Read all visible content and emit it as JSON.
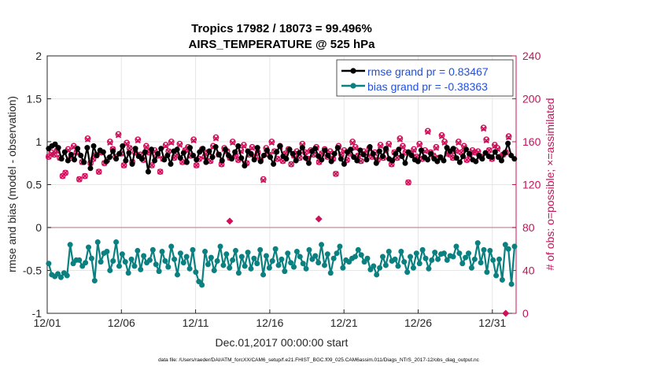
{
  "chart_data": {
    "type": "line",
    "title": "Tropics 17982 / 18073 = 99.496%",
    "subtitle": "AIRS_TEMPERATURE @ 525 hPa",
    "xlabel": "Dec.01,2017 00:00:00 start",
    "ylabel": "rmse and bias (model - observation)",
    "y2label": "# of obs: o=possible; ×=assimilated",
    "footer": "data file: /Users/raeder/DAI/ATM_forcXX/CAM6_setup/f.e21.FHIST_BGC.f09_025.CAM6assim.011/Diags_NTrS_2017-12/obs_diag_output.nc",
    "xlim": [
      0,
      31.6
    ],
    "ylim": [
      -1,
      2
    ],
    "y2lim": [
      0,
      240
    ],
    "x_ticks": [
      0,
      5,
      10,
      15,
      20,
      25,
      30
    ],
    "x_tick_labels": [
      "12/01",
      "12/06",
      "12/11",
      "12/16",
      "12/21",
      "12/26",
      "12/31"
    ],
    "y_ticks": [
      -1,
      -0.5,
      0,
      0.5,
      1,
      1.5,
      2
    ],
    "y_tick_labels": [
      "-1",
      "-0.5",
      "0",
      "0.5",
      "1",
      "1.5",
      "2"
    ],
    "y2_ticks": [
      0,
      40,
      80,
      120,
      160,
      200,
      240
    ],
    "y2_tick_labels": [
      "0",
      "40",
      "80",
      "120",
      "160",
      "200",
      "240"
    ],
    "legend_position": "top-right",
    "colors": {
      "rmse": "#000000",
      "bias": "#0a8080",
      "obs": "#d0105a",
      "axis_right": "#c8105a",
      "legend_text": "#1f4fe0"
    },
    "series": [
      {
        "name": "rmse grand pr = 0.83467",
        "values": [
          0.92,
          0.95,
          0.97,
          0.93,
          0.8,
          0.88,
          0.78,
          0.85,
          0.79,
          0.92,
          0.84,
          0.76,
          0.93,
          0.69,
          0.95,
          0.84,
          0.9,
          0.88,
          0.77,
          0.82,
          0.89,
          0.8,
          0.86,
          0.95,
          0.78,
          0.87,
          0.74,
          0.92,
          0.83,
          0.8,
          0.88,
          0.65,
          0.91,
          0.78,
          0.86,
          0.92,
          0.79,
          0.84,
          0.74,
          0.89,
          0.91,
          0.81,
          0.87,
          0.76,
          0.93,
          0.84,
          0.79,
          0.88,
          0.92,
          0.76,
          0.89,
          0.82,
          0.94,
          0.85,
          0.78,
          0.91,
          0.84,
          0.8,
          0.88,
          0.95,
          0.81,
          0.72,
          0.89,
          0.86,
          0.79,
          0.93,
          0.77,
          0.84,
          0.9,
          0.82,
          0.74,
          0.88,
          0.95,
          0.83,
          0.8,
          0.91,
          0.86,
          0.78,
          0.87,
          0.93,
          0.81,
          0.75,
          0.89,
          0.92,
          0.83,
          0.79,
          0.9,
          0.84,
          0.77,
          0.86,
          0.93,
          0.8,
          0.74,
          0.88,
          0.91,
          0.82,
          0.78,
          0.9,
          0.85,
          0.79,
          0.94,
          0.86,
          0.75,
          0.89,
          0.83,
          0.92,
          0.8,
          0.78,
          0.86,
          0.91,
          0.83,
          0.75,
          0.88,
          0.84,
          0.79,
          0.77,
          0.9,
          0.82,
          0.79,
          0.86,
          0.8,
          0.77,
          0.82,
          0.78,
          0.93,
          0.89,
          0.92,
          0.81,
          0.76,
          0.83,
          0.91,
          0.86,
          0.79,
          0.77,
          0.84,
          0.8,
          0.87,
          0.83,
          0.82,
          0.88,
          0.82,
          0.78,
          0.87,
          0.98,
          0.84,
          0.8
        ]
      },
      {
        "name": "bias grand pr = -0.38363",
        "values": [
          -0.42,
          -0.55,
          -0.57,
          -0.54,
          -0.58,
          -0.53,
          -0.56,
          -0.2,
          -0.42,
          -0.38,
          -0.38,
          -0.45,
          -0.41,
          -0.23,
          -0.36,
          -0.62,
          -0.17,
          -0.4,
          -0.3,
          -0.28,
          -0.5,
          -0.39,
          -0.17,
          -0.45,
          -0.31,
          -0.4,
          -0.53,
          -0.37,
          -0.45,
          -0.27,
          -0.49,
          -0.33,
          -0.41,
          -0.38,
          -0.26,
          -0.43,
          -0.51,
          -0.28,
          -0.39,
          -0.46,
          -0.22,
          -0.37,
          -0.55,
          -0.3,
          -0.41,
          -0.34,
          -0.48,
          -0.26,
          -0.52,
          -0.63,
          -0.67,
          -0.28,
          -0.43,
          -0.35,
          -0.5,
          -0.39,
          -0.22,
          -0.44,
          -0.31,
          -0.47,
          -0.38,
          -0.27,
          -0.53,
          -0.34,
          -0.45,
          -0.29,
          -0.48,
          -0.36,
          -0.42,
          -0.26,
          -0.55,
          -0.33,
          -0.47,
          -0.39,
          -0.25,
          -0.44,
          -0.37,
          -0.51,
          -0.3,
          -0.41,
          -0.46,
          -0.28,
          -0.34,
          -0.42,
          -0.48,
          -0.26,
          -0.37,
          -0.33,
          -0.41,
          -0.2,
          -0.44,
          -0.31,
          -0.53,
          -0.36,
          -0.3,
          -0.22,
          -0.47,
          -0.38,
          -0.4,
          -0.36,
          -0.34,
          -0.26,
          -0.32,
          -0.4,
          -0.36,
          -0.49,
          -0.45,
          -0.55,
          -0.47,
          -0.34,
          -0.44,
          -0.28,
          -0.39,
          -0.37,
          -0.45,
          -0.28,
          -0.4,
          -0.52,
          -0.34,
          -0.47,
          -0.3,
          -0.42,
          -0.26,
          -0.36,
          -0.48,
          -0.38,
          -0.29,
          -0.37,
          -0.31,
          -0.3,
          -0.38,
          -0.33,
          -0.34,
          -0.22,
          -0.3,
          -0.42,
          -0.35,
          -0.3,
          -0.47,
          -0.37,
          -0.18,
          -0.41,
          -0.26,
          -0.52,
          -0.27,
          -0.38,
          -0.56,
          -0.37,
          -0.61,
          -0.2,
          -0.25,
          -0.66,
          -0.22
        ]
      }
    ],
    "obs_possible": [
      146,
      150,
      148,
      152,
      145,
      128,
      131,
      153,
      145,
      156,
      150,
      125,
      141,
      128,
      163,
      140,
      144,
      148,
      132,
      150,
      140,
      143,
      160,
      153,
      146,
      167,
      149,
      138,
      159,
      154,
      141,
      150,
      162,
      148,
      143,
      156,
      150,
      138,
      152,
      147,
      132,
      144,
      157,
      151,
      160,
      145,
      148,
      158,
      141,
      152,
      155,
      147,
      162,
      138,
      144,
      153,
      146,
      150,
      142,
      156,
      164,
      148,
      139,
      154,
      151,
      145,
      160,
      147,
      143,
      152,
      157,
      140,
      148,
      155,
      146,
      150,
      143,
      125,
      154,
      148,
      160,
      151,
      144,
      156,
      142,
      149,
      153,
      139,
      147,
      151,
      145,
      158,
      150,
      144,
      152,
      148,
      155,
      141,
      149,
      153,
      146,
      151,
      144,
      130,
      156,
      148,
      152,
      143,
      149,
      160,
      155,
      147,
      142,
      151,
      148,
      154,
      146,
      150,
      143,
      157,
      145,
      152,
      158,
      139,
      150,
      145,
      163,
      156,
      150,
      122,
      149,
      153,
      146,
      158,
      144,
      152,
      170,
      150,
      147,
      155,
      145,
      166,
      160,
      149,
      148,
      145,
      152,
      160,
      150,
      156,
      143,
      148,
      152,
      150,
      151,
      146,
      173,
      162,
      152,
      144,
      157,
      154,
      146,
      148,
      150,
      165
    ],
    "obs_assimilated": [
      146,
      149,
      148,
      151,
      145,
      128,
      131,
      152,
      145,
      155,
      150,
      125,
      141,
      128,
      162,
      140,
      144,
      147,
      132,
      150,
      140,
      143,
      159,
      153,
      146,
      166,
      149,
      138,
      158,
      154,
      141,
      150,
      161,
      148,
      143,
      155,
      150,
      138,
      151,
      147,
      132,
      144,
      156,
      151,
      159,
      145,
      148,
      157,
      141,
      152,
      154,
      147,
      161,
      138,
      144,
      152,
      146,
      150,
      142,
      155,
      163,
      148,
      139,
      153,
      151,
      145,
      159,
      147,
      143,
      151,
      156,
      140,
      148,
      154,
      146,
      150,
      143,
      124,
      153,
      148,
      159,
      151,
      144,
      155,
      142,
      149,
      152,
      139,
      147,
      150,
      145,
      157,
      150,
      144,
      151,
      148,
      154,
      141,
      149,
      152,
      146,
      150,
      144,
      130,
      155,
      148,
      151,
      143,
      149,
      159,
      154,
      147,
      142,
      150,
      148,
      153,
      146,
      149,
      143,
      156,
      145,
      151,
      157,
      139,
      150,
      145,
      162,
      155,
      150,
      122,
      149,
      152,
      146,
      157,
      144,
      151,
      169,
      150,
      147,
      154,
      145,
      165,
      159,
      149,
      148,
      145,
      151,
      159,
      150,
      155,
      143,
      148,
      151,
      150,
      150,
      146,
      172,
      161,
      152,
      144,
      156,
      153,
      146,
      148,
      150,
      164
    ],
    "outliers": [
      {
        "x": 12.3,
        "obs": 86
      },
      {
        "x": 18.3,
        "obs": 88
      },
      {
        "x": 30.9,
        "obs": 0
      }
    ]
  }
}
